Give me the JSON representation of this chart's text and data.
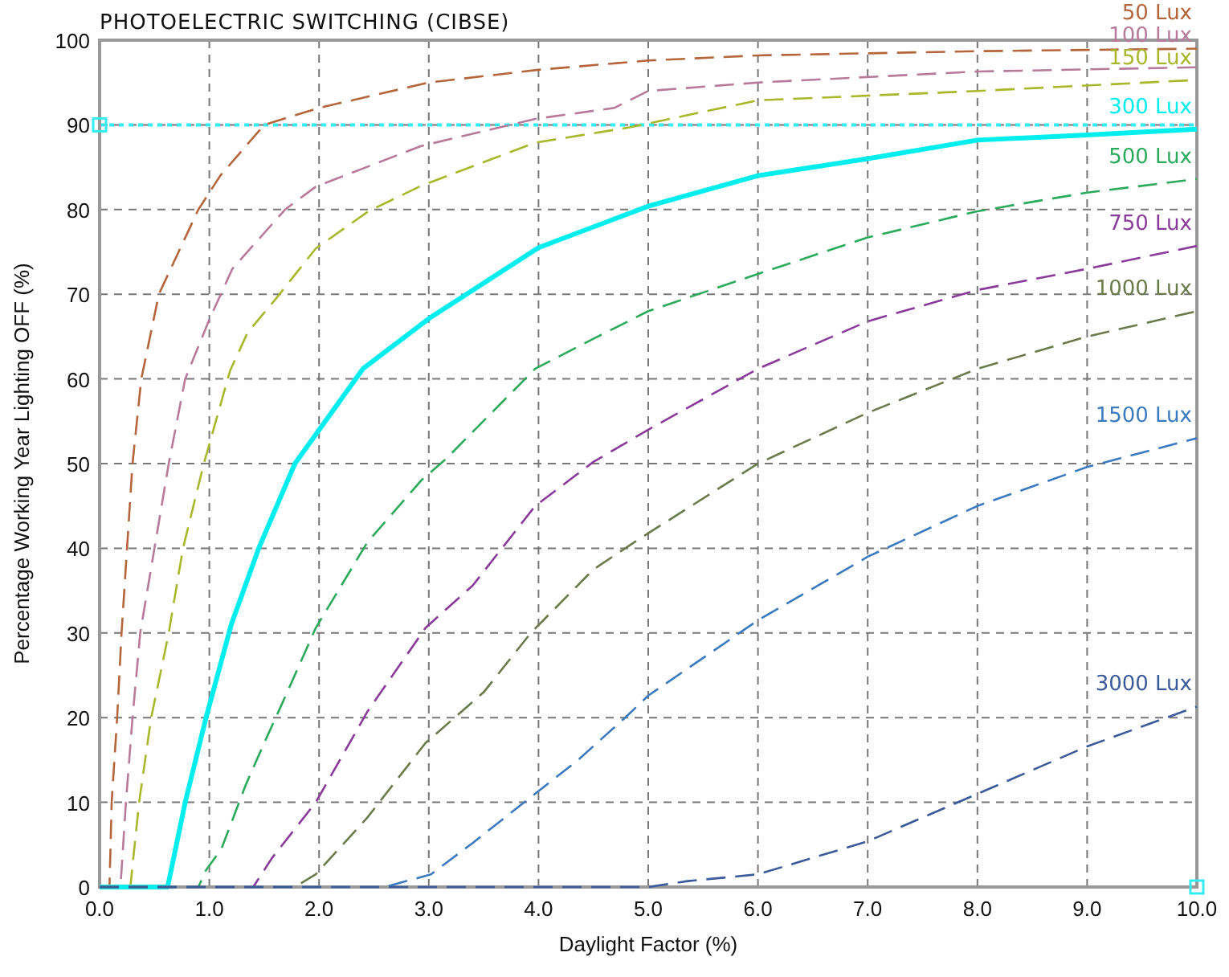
{
  "chart_data": {
    "type": "line",
    "title": "PHOTOELECTRIC SWITCHING (CIBSE)",
    "xlabel": "Daylight Factor (%)",
    "ylabel": "Percentage Working Year Lighting OFF (%)",
    "xlim": [
      0,
      10
    ],
    "ylim": [
      0,
      100
    ],
    "xticks": [
      {
        "value": 0,
        "label": "0.0"
      },
      {
        "value": 1,
        "label": "1.0"
      },
      {
        "value": 2,
        "label": "2.0"
      },
      {
        "value": 3,
        "label": "3.0"
      },
      {
        "value": 4,
        "label": "4.0"
      },
      {
        "value": 5,
        "label": "5.0"
      },
      {
        "value": 6,
        "label": "6.0"
      },
      {
        "value": 7,
        "label": "7.0"
      },
      {
        "value": 8,
        "label": "8.0"
      },
      {
        "value": 9,
        "label": "9.0"
      },
      {
        "value": 10,
        "label": "10.0"
      }
    ],
    "yticks": [
      0,
      10,
      20,
      30,
      40,
      50,
      60,
      70,
      80,
      90,
      100
    ],
    "grid": true,
    "line_style": "dashed",
    "marker": "none",
    "legend": false,
    "ref_lines": [
      {
        "axis": "y",
        "value": 90,
        "color": "#33eeee",
        "line_style": "dotted"
      }
    ],
    "series": [
      {
        "name": "50 Lux",
        "color": "#b5653a",
        "x": [
          0,
          0.09,
          0.11,
          0.16,
          0.2,
          0.25,
          0.3,
          0.38,
          0.54,
          0.9,
          1.1,
          1.5,
          2.0,
          3.0,
          4.0,
          5.0,
          6.0,
          8.0,
          10.0
        ],
        "values": [
          0,
          0,
          10,
          20,
          30,
          40,
          50,
          60,
          70,
          80,
          84,
          90,
          92,
          95,
          96.5,
          97.6,
          98.2,
          98.7,
          99
        ]
      },
      {
        "name": "100 Lux",
        "color": "#b87a9a",
        "x": [
          0,
          0.19,
          0.24,
          0.3,
          0.37,
          0.5,
          0.63,
          0.78,
          1.0,
          1.21,
          1.69,
          1.97,
          2.93,
          3.97,
          4.69,
          5.0,
          6.0,
          8.0,
          10.0
        ],
        "values": [
          0,
          0,
          10,
          20,
          30,
          40,
          50,
          60,
          67,
          73,
          80,
          82.7,
          87.5,
          90.7,
          92,
          94,
          95,
          96.3,
          96.8
        ]
      },
      {
        "name": "150 Lux",
        "color": "#a8b82a",
        "x": [
          0,
          0.28,
          0.36,
          0.47,
          0.63,
          0.76,
          0.95,
          1.19,
          1.35,
          1.59,
          1.97,
          2.45,
          2.93,
          3.97,
          4.83,
          6.0,
          8.0,
          10.0
        ],
        "values": [
          0,
          0,
          10,
          20,
          30,
          40,
          50,
          61,
          65.5,
          69.2,
          75.4,
          79.8,
          82.8,
          87.9,
          89.7,
          92.9,
          94,
          95.3
        ]
      },
      {
        "name": "300 Lux",
        "color": "#00eeee",
        "line_style": "solid",
        "x": [
          0,
          0.62,
          0.78,
          0.97,
          1.2,
          1.45,
          1.78,
          2.4,
          3.02,
          4.0,
          5.0,
          6.0,
          7.0,
          8.0,
          9.0,
          10.0
        ],
        "values": [
          0,
          0,
          10,
          20,
          31,
          40,
          50,
          61.2,
          67.3,
          75.5,
          80.4,
          84,
          86,
          88.2,
          88.8,
          89.5
        ]
      },
      {
        "name": "500 Lux",
        "color": "#2aaa5a",
        "x": [
          0,
          0.9,
          0.97,
          1.11,
          1.33,
          1.5,
          1.71,
          1.97,
          2.44,
          2.93,
          3.16,
          3.97,
          4.54,
          5.0,
          6.0,
          7.0,
          8.0,
          9.0,
          10.0
        ],
        "values": [
          0,
          0,
          2,
          4.5,
          12,
          17,
          23,
          30.6,
          40.7,
          48,
          50.6,
          61.2,
          65,
          68,
          72.4,
          76.7,
          79.8,
          82,
          83.6
        ]
      },
      {
        "name": "750 Lux",
        "color": "#8a3a9a",
        "x": [
          0,
          1.4,
          1.57,
          1.97,
          2.44,
          2.97,
          3.4,
          3.97,
          4.5,
          5.0,
          6.0,
          7.0,
          8.0,
          9.0,
          10.0
        ],
        "values": [
          0,
          0,
          3.4,
          10,
          20.7,
          30.6,
          35.6,
          45,
          50.2,
          54,
          61.2,
          66.8,
          70.5,
          73,
          75.7
        ]
      },
      {
        "name": "1000 Lux",
        "color": "#6b7a4a",
        "x": [
          0,
          1.78,
          1.97,
          2.44,
          2.97,
          3.5,
          3.93,
          4.5,
          4.93,
          6.0,
          7.0,
          8.0,
          9.0,
          10.0
        ],
        "values": [
          0,
          0,
          1.5,
          8.2,
          17,
          23,
          30,
          37.5,
          41.2,
          50,
          56,
          61.2,
          65,
          68
        ]
      },
      {
        "name": "1500 Lux",
        "color": "#3a7abf",
        "x": [
          0,
          2.6,
          3.02,
          3.4,
          3.87,
          4.36,
          4.79,
          5.0,
          6.0,
          7.0,
          8.0,
          9.0,
          10.0
        ],
        "values": [
          0,
          0,
          1.5,
          5.2,
          10,
          15,
          20,
          22.6,
          31.5,
          39,
          45,
          49.6,
          53
        ]
      },
      {
        "name": "3000 Lux",
        "color": "#3a5a9a",
        "x": [
          0,
          5.0,
          5.36,
          6.0,
          7.0,
          8.0,
          9.0,
          10.0
        ],
        "values": [
          0,
          0,
          0.7,
          1.5,
          5.4,
          11,
          16.6,
          21.3
        ]
      }
    ]
  }
}
